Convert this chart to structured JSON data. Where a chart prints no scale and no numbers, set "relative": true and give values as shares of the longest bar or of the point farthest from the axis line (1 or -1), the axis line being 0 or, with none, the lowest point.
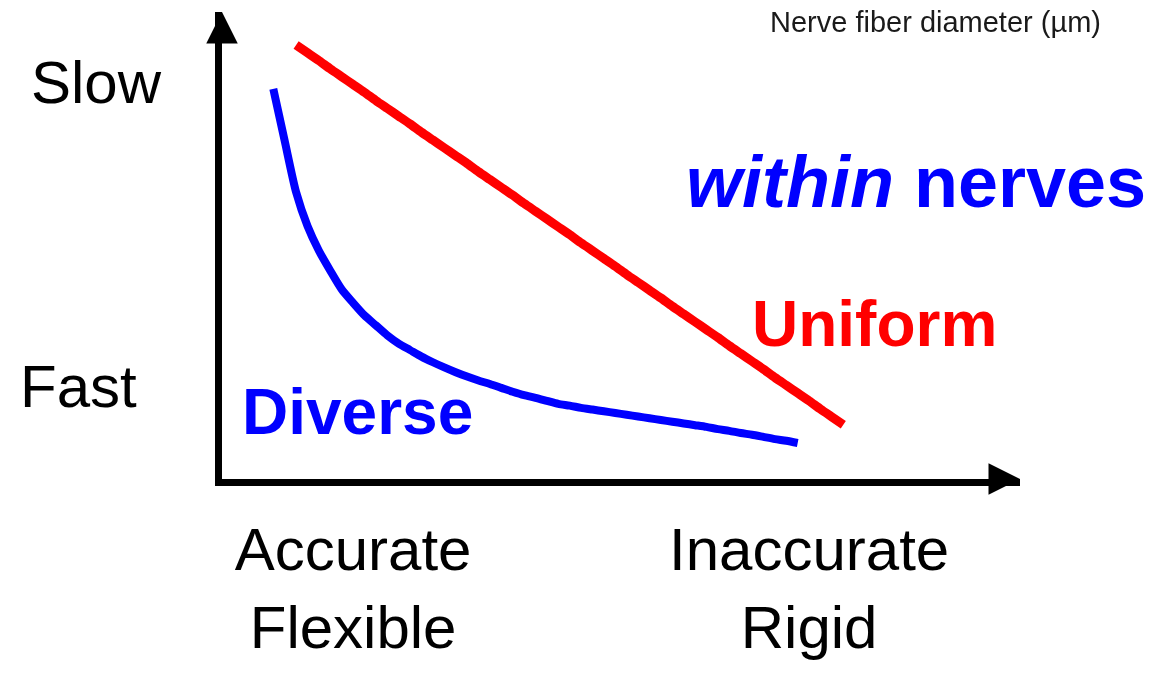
{
  "chart_data": {
    "type": "line",
    "relative": true,
    "categories": [
      null,
      null,
      null,
      null,
      null,
      null,
      null,
      null,
      null,
      null,
      null,
      "Accurate\nFlexible",
      null,
      null,
      null,
      null,
      null,
      null,
      null,
      null,
      null,
      null,
      null,
      null,
      null,
      null,
      null,
      null,
      null,
      null,
      null,
      null,
      null,
      null,
      null,
      null,
      null,
      null,
      null,
      null,
      null,
      null,
      null,
      null,
      null,
      null,
      null,
      null,
      null,
      null,
      null,
      "Inaccurate\nRigid",
      null,
      null,
      null,
      null,
      null,
      null,
      null,
      null,
      null,
      null,
      null,
      null,
      null,
      null,
      null,
      null,
      null,
      null
    ],
    "series": [
      {
        "name": "Uniform",
        "color": "#ff0000",
        "values": [
          null,
          null,
          null,
          null,
          null,
          null,
          1.0,
          0.982,
          0.964,
          0.945,
          0.927,
          0.909,
          0.891,
          0.872,
          0.854,
          0.836,
          0.818,
          0.799,
          0.781,
          0.763,
          0.745,
          0.727,
          0.708,
          0.69,
          0.672,
          0.654,
          0.635,
          0.617,
          0.599,
          0.581,
          0.563,
          0.544,
          0.526,
          0.508,
          0.49,
          0.471,
          0.453,
          0.435,
          0.417,
          0.398,
          0.38,
          0.362,
          0.344,
          0.326,
          0.307,
          0.289,
          0.271,
          0.253,
          0.234,
          0.216,
          0.198,
          0.18,
          0.161,
          0.143,
          0.125,
          null,
          null,
          null,
          null,
          null,
          null,
          null,
          null,
          null,
          null,
          null,
          null,
          null,
          null,
          null
        ]
      },
      {
        "name": "Diverse",
        "color": "#0000ff",
        "values": [
          null,
          null,
          null,
          null,
          0.899,
          0.779,
          0.661,
          0.583,
          0.526,
          0.48,
          0.437,
          0.406,
          0.377,
          0.354,
          0.331,
          0.312,
          0.297,
          0.282,
          0.269,
          0.257,
          0.246,
          0.236,
          0.227,
          0.219,
          0.21,
          0.201,
          0.193,
          0.187,
          0.18,
          0.173,
          0.169,
          0.164,
          0.16,
          0.156,
          0.152,
          0.148,
          0.144,
          0.14,
          0.136,
          0.132,
          0.128,
          0.124,
          0.12,
          0.115,
          0.111,
          0.106,
          0.102,
          0.097,
          0.092,
          0.088,
          0.083,
          null,
          null,
          null,
          null,
          null,
          null,
          null,
          null,
          null,
          null,
          null,
          null,
          null,
          null,
          null,
          null,
          null,
          null,
          null
        ]
      }
    ],
    "annotations": [
      "Nerve fiber diameter (µm)",
      "within nerves",
      "Slow",
      "Fast"
    ],
    "legend": false,
    "grid": false,
    "marker": "none",
    "line_style": "solid"
  }
}
